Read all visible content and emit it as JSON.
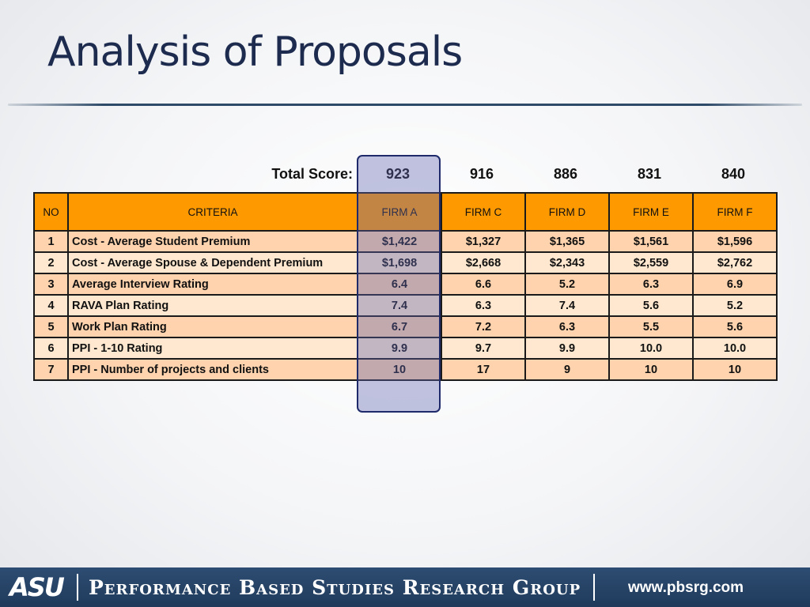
{
  "slide": {
    "title": "Analysis of Proposals"
  },
  "score_label": "Total Score:",
  "scores": [
    "923",
    "916",
    "886",
    "831",
    "840"
  ],
  "headers": {
    "no": "NO",
    "criteria": "CRITERIA",
    "firms": [
      "FIRM A",
      "FIRM C",
      "FIRM D",
      "FIRM E",
      "FIRM F"
    ]
  },
  "rows": [
    {
      "no": "1",
      "criteria": "Cost - Average Student Premium",
      "values": [
        "$1,422",
        "$1,327",
        "$1,365",
        "$1,561",
        "$1,596"
      ]
    },
    {
      "no": "2",
      "criteria": "Cost - Average Spouse & Dependent Premium",
      "values": [
        "$1,698",
        "$2,668",
        "$2,343",
        "$2,559",
        "$2,762"
      ]
    },
    {
      "no": "3",
      "criteria": "Average Interview Rating",
      "values": [
        "6.4",
        "6.6",
        "5.2",
        "6.3",
        "6.9"
      ]
    },
    {
      "no": "4",
      "criteria": "RAVA Plan Rating",
      "values": [
        "7.4",
        "6.3",
        "7.4",
        "5.6",
        "5.2"
      ]
    },
    {
      "no": "5",
      "criteria": "Work Plan Rating",
      "values": [
        "6.7",
        "7.2",
        "6.3",
        "5.5",
        "5.6"
      ]
    },
    {
      "no": "6",
      "criteria": "PPI - 1-10 Rating",
      "values": [
        "9.9",
        "9.7",
        "9.9",
        "10.0",
        "10.0"
      ]
    },
    {
      "no": "7",
      "criteria": "PPI - Number of projects and clients",
      "values": [
        "10",
        "17",
        "9",
        "10",
        "10"
      ]
    }
  ],
  "footer": {
    "logo": "ASU",
    "group": "Performance Based Studies Research Group",
    "url": "www.pbsrg.com"
  },
  "colors": {
    "title": "#1d2b4f",
    "header_fill": "#ff9900",
    "row_odd": "#ffd3ad",
    "row_even": "#ffe8cf",
    "highlight": "#5f64af",
    "footer": "#1f3a5b"
  }
}
